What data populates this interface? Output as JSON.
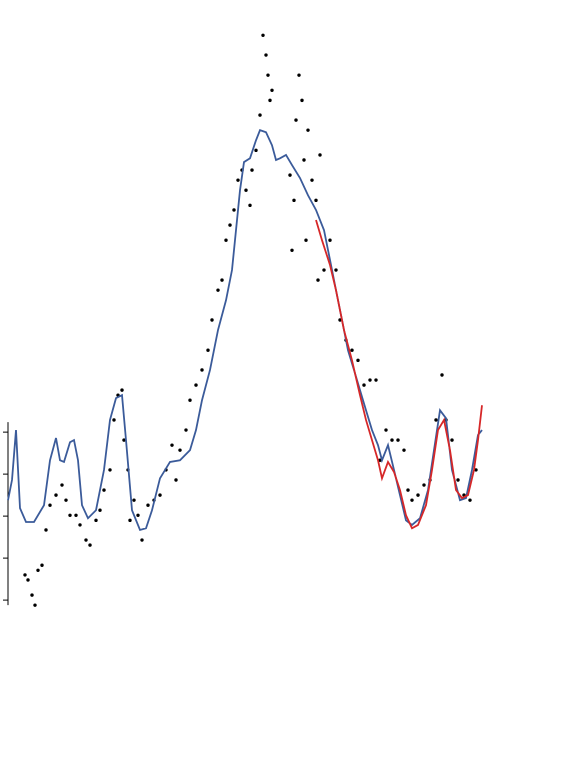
{
  "chart_data": {
    "type": "scatter_line",
    "xlim": [
      -4,
      282
    ],
    "ylim": [
      -4.26,
      14.29
    ],
    "yticks": [
      0,
      1,
      2,
      3,
      4
    ],
    "scatter": {
      "color": "#000000",
      "x": [
        8.5,
        10,
        12,
        13.5,
        15,
        17,
        19,
        21,
        24,
        27,
        29,
        31,
        34,
        36,
        39,
        41,
        44,
        46,
        48,
        51,
        53,
        55,
        57,
        58,
        60,
        61,
        63,
        65,
        67,
        70,
        73,
        76,
        79,
        82,
        84,
        86,
        89,
        91,
        94,
        97,
        100,
        102,
        105,
        107,
        109,
        111,
        113,
        115,
        117,
        119,
        121,
        122,
        124,
        126,
        127.5,
        129,
        130,
        131,
        132,
        141,
        142,
        143,
        144,
        145.5,
        147,
        148,
        149,
        150,
        152,
        154,
        156,
        155,
        158,
        161,
        164,
        166,
        169,
        172,
        175,
        178,
        181,
        184,
        186,
        189,
        192,
        195,
        198,
        200,
        202,
        205,
        208,
        211,
        214,
        217,
        219,
        222,
        225,
        228,
        231,
        234
      ],
      "y": [
        0.6,
        0.48,
        0.12,
        -0.12,
        0.71,
        0.83,
        1.67,
        2.26,
        2.5,
        2.74,
        2.38,
        2.02,
        2.02,
        1.79,
        1.43,
        1.31,
        1.9,
        2.14,
        2.62,
        3.1,
        4.29,
        4.88,
        5.0,
        3.81,
        3.1,
        1.9,
        2.38,
        2.02,
        1.43,
        2.26,
        2.38,
        2.5,
        3.1,
        3.69,
        2.86,
        3.57,
        4.05,
        4.76,
        5.12,
        5.48,
        5.95,
        6.67,
        7.38,
        7.62,
        8.57,
        8.93,
        9.29,
        10.0,
        10.24,
        9.76,
        9.4,
        10.24,
        10.71,
        11.55,
        13.45,
        12.98,
        12.5,
        11.9,
        12.14,
        10.12,
        8.33,
        9.52,
        11.43,
        12.5,
        11.9,
        10.48,
        8.57,
        11.19,
        10.0,
        9.52,
        10.6,
        7.62,
        7.86,
        8.57,
        7.86,
        6.67,
        6.19,
        5.95,
        5.71,
        5.12,
        5.24,
        5.24,
        3.33,
        4.05,
        3.81,
        3.81,
        3.57,
        2.62,
        2.38,
        2.5,
        2.74,
        2.86,
        4.29,
        5.36,
        4.29,
        3.81,
        2.86,
        2.5,
        2.38,
        3.1
      ]
    },
    "series": [
      {
        "color": "#3b5b9a",
        "x": [
          0,
          2,
          4,
          6,
          9,
          13,
          18,
          21,
          24,
          26,
          28,
          31,
          33,
          35,
          37,
          40,
          44,
          48,
          51,
          54,
          57,
          59,
          62,
          66,
          69,
          72,
          76,
          81,
          86,
          91,
          94,
          97,
          101,
          105,
          109,
          112,
          114,
          116,
          118,
          121,
          124,
          126,
          129,
          132,
          134,
          136,
          139,
          142,
          146,
          150,
          154,
          158,
          161,
          164,
          167,
          170,
          173,
          176,
          179,
          182,
          185,
          187,
          190,
          193,
          196,
          199,
          202,
          206,
          210,
          213,
          216,
          219,
          222,
          226,
          229,
          232,
          235,
          237
        ],
        "values": [
          2.38,
          2.86,
          4.05,
          2.19,
          1.86,
          1.86,
          2.26,
          3.33,
          3.86,
          3.33,
          3.29,
          3.76,
          3.81,
          3.33,
          2.26,
          1.95,
          2.14,
          3.1,
          4.29,
          4.81,
          4.88,
          3.81,
          2.14,
          1.67,
          1.71,
          2.14,
          2.9,
          3.29,
          3.33,
          3.57,
          4.05,
          4.76,
          5.48,
          6.43,
          7.14,
          7.86,
          8.81,
          9.76,
          10.43,
          10.52,
          10.95,
          11.19,
          11.14,
          10.83,
          10.48,
          10.52,
          10.6,
          10.36,
          10.05,
          9.64,
          9.29,
          8.81,
          8.1,
          7.38,
          6.67,
          5.95,
          5.48,
          5.0,
          4.52,
          4.05,
          3.69,
          3.33,
          3.69,
          3.1,
          2.5,
          1.9,
          1.79,
          1.95,
          2.62,
          3.57,
          4.52,
          4.33,
          3.1,
          2.38,
          2.43,
          3.1,
          3.93,
          4.05
        ]
      },
      {
        "color": "#d62728",
        "x": [
          154,
          157,
          161,
          164,
          168,
          172,
          176,
          179,
          182,
          185,
          187,
          190,
          193,
          196,
          199,
          202,
          205,
          209,
          212,
          215,
          218,
          221,
          224,
          227,
          230,
          233,
          235,
          237
        ],
        "values": [
          9.05,
          8.57,
          7.98,
          7.38,
          6.43,
          5.71,
          4.88,
          4.29,
          3.81,
          3.33,
          2.9,
          3.29,
          3.05,
          2.62,
          2.02,
          1.71,
          1.79,
          2.26,
          3.1,
          4.05,
          4.29,
          3.57,
          2.62,
          2.43,
          2.5,
          3.1,
          3.81,
          4.64
        ]
      }
    ]
  }
}
